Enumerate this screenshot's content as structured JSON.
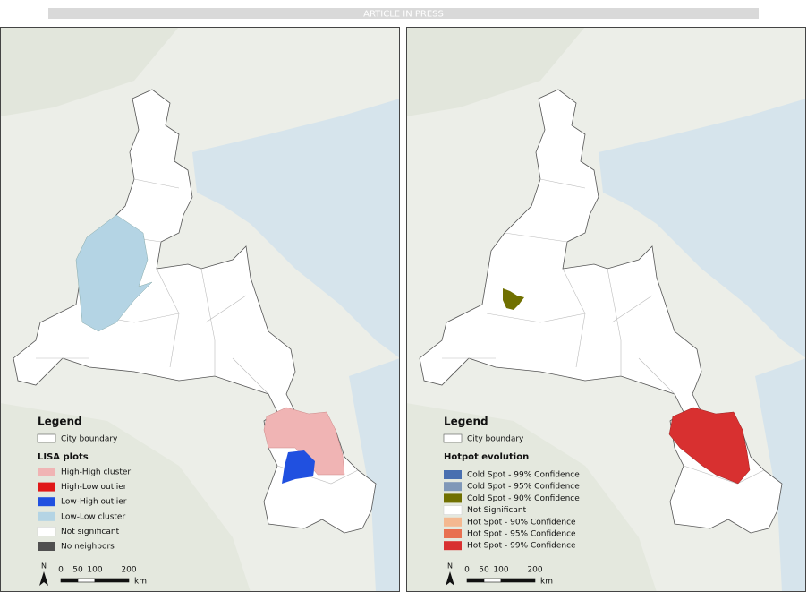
{
  "banner": "ARTICLE IN PRESS",
  "panels": [
    {
      "legend_title": "Legend",
      "boundary_label": "City boundary",
      "section_title": "LISA plots",
      "items": [
        {
          "label": "High-High cluster",
          "color": "#f0b4b4"
        },
        {
          "label": "High-Low outlier",
          "color": "#e01818"
        },
        {
          "label": "Low-High outlier",
          "color": "#2050e0"
        },
        {
          "label": "Low-Low cluster",
          "color": "#b4d4e4"
        },
        {
          "label": "Not significant",
          "color": "#ffffff"
        },
        {
          "label": "No neighbors",
          "color": "#505050"
        }
      ],
      "scale": {
        "north": "N",
        "ticks": [
          0,
          50,
          100,
          200
        ],
        "unit": "km"
      }
    },
    {
      "legend_title": "Legend",
      "boundary_label": "City boundary",
      "section_title": "Hotpot evolution",
      "items": [
        {
          "label": "Cold Spot - 99% Confidence",
          "color": "#4a70b0"
        },
        {
          "label": "Cold Spot - 95% Confidence",
          "color": "#8098b8"
        },
        {
          "label": "Cold Spot - 90% Confidence",
          "color": "#707000"
        },
        {
          "label": "Not Significant",
          "color": "#ffffff"
        },
        {
          "label": "Hot Spot - 90% Confidence",
          "color": "#f4b890"
        },
        {
          "label": "Hot Spot - 95% Confidence",
          "color": "#e87050"
        },
        {
          "label": "Hot Spot - 99% Confidence",
          "color": "#d83030"
        }
      ],
      "scale": {
        "north": "N",
        "ticks": [
          0,
          50,
          100,
          200
        ],
        "unit": "km"
      }
    }
  ]
}
